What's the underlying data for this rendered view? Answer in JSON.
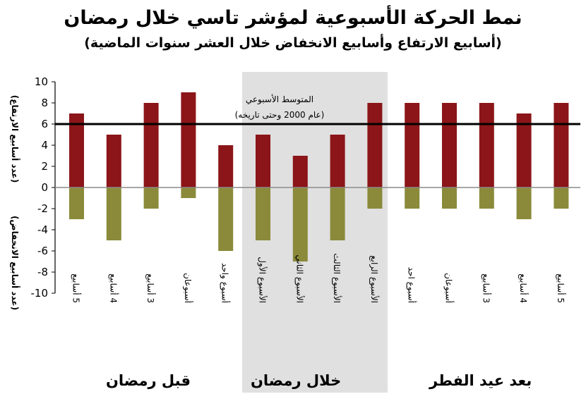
{
  "chart_data": {
    "type": "bar",
    "title": "نمط الحركة الأسبوعية لمؤشر تاسي خلال رمضان",
    "subtitle": "(أسابيع الارتفاع وأسابيع الانخفاض خلال العشر سنوات الماضية)",
    "ylabel_up": "(عدد أسابيع الارتفاع)",
    "ylabel_down": "(عدد أسابيع الانخفاض)",
    "ylim": [
      -10,
      10
    ],
    "yticks": [
      10,
      8,
      6,
      4,
      2,
      0,
      -2,
      -4,
      -6,
      -8,
      -10
    ],
    "grid": false,
    "categories": [
      "5 أسابيع",
      "4 أسابيع",
      "3 أسابيع",
      "أسبوعان",
      "أسبوع واحد",
      "الأسبوع الأول",
      "الأسبوع الثاني",
      "الأسبوع الثالث",
      "الأسبوع الرابع",
      "أسبوع احد",
      "أسبوعان",
      "3 أسابيع",
      "4 أسابيع",
      "5 أسابيع"
    ],
    "series": [
      {
        "values": [
          7,
          5,
          8,
          9,
          4,
          5,
          3,
          5,
          8,
          8,
          8,
          8,
          7,
          8
        ],
        "color": "#8b1518"
      },
      {
        "values": [
          -3,
          -5,
          -2,
          -1,
          -6,
          -5,
          -7,
          -5,
          -2,
          -2,
          -2,
          -2,
          -3,
          -2
        ],
        "color": "#8a8a3a"
      }
    ],
    "reference_line": {
      "value": 6,
      "label_line1": "المتوسط الأسبوعي",
      "label_line2": "(عام 2000 وحتى تاريخه)"
    },
    "groups": [
      {
        "label": "قبل رمضان",
        "shaded": false
      },
      {
        "label": "خلال رمضان",
        "shaded": true
      },
      {
        "label": "بعد عيد الفطر",
        "shaded": false
      }
    ],
    "colors": {
      "up": "#8b1518",
      "down": "#8a8a3a",
      "shade": "#e0e0e0",
      "axis": "#000000"
    }
  }
}
